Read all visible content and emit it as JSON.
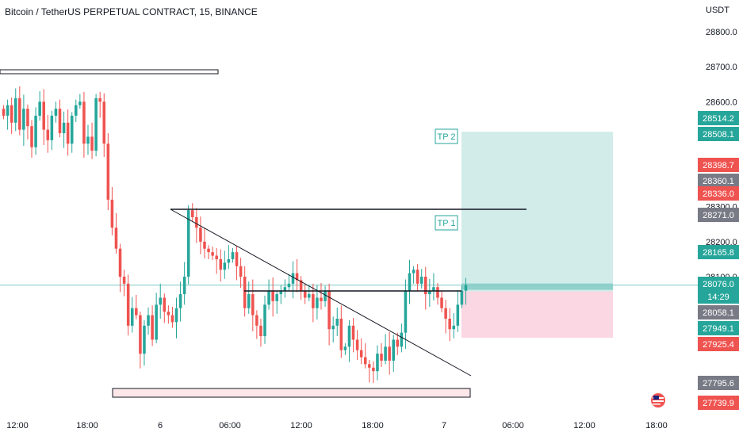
{
  "header": {
    "title": "Bitcoin / TetherUS PERPETUAL CONTRACT, 15, BINANCE",
    "currency": "USDT"
  },
  "colors": {
    "up": "#26a69a",
    "down": "#ef5350",
    "tp_zone": "#b2dfdb",
    "sl_zone": "#f8bbd0",
    "price_line": "#26a69a",
    "bg": "#ffffff"
  },
  "icons": [
    "flag-us-icon"
  ],
  "chart_data": {
    "type": "candlestick",
    "symbol": "BTCUSDT",
    "interval": "15",
    "exchange": "BINANCE",
    "y_axis": {
      "ticks": [
        28800.0,
        28700.0,
        28600.0,
        28300.0,
        28200.0,
        28100.0
      ],
      "tick_labels": [
        "28800.0",
        "28700.0",
        "28600.0",
        "28300.0",
        "28200.0",
        "28100.0"
      ]
    },
    "x_axis": {
      "tick_labels": [
        "12:00",
        "18:00",
        "6",
        "06:00",
        "12:00",
        "18:00",
        "7",
        "06:00",
        "12:00",
        "18:00"
      ]
    },
    "price_labels": [
      {
        "value": "28514.2",
        "kind": "up"
      },
      {
        "value": "28508.1",
        "kind": "up"
      },
      {
        "value": "28398.7",
        "kind": "down"
      },
      {
        "value": "28360.1",
        "kind": "neutral"
      },
      {
        "value": "28336.0",
        "kind": "down"
      },
      {
        "value": "28271.0",
        "kind": "neutral"
      },
      {
        "value": "28165.8",
        "kind": "up"
      },
      {
        "value": "28076.0",
        "kind": "up"
      },
      {
        "value": "14:29",
        "kind": "up"
      },
      {
        "value": "28058.1",
        "kind": "neutral"
      },
      {
        "value": "27949.1",
        "kind": "up"
      },
      {
        "value": "27925.4",
        "kind": "down"
      },
      {
        "value": "27795.6",
        "kind": "neutral"
      },
      {
        "value": "27739.9",
        "kind": "down"
      }
    ],
    "current_price": 28076.0,
    "countdown": "14:29",
    "annotations": [
      {
        "label": "TP 2",
        "price": 28514.2
      },
      {
        "label": "TP 1",
        "price": 28271.0
      }
    ],
    "position": {
      "entry": 28058.1,
      "target": 28514.2,
      "stop": 27925.4
    },
    "levels": {
      "resistance_high": 28700.0,
      "horizontal_resistance": 28300.0,
      "breakout_line": 28058.1,
      "support_zone": 27770.0
    },
    "candles_close_estimate": [
      28560,
      28590,
      28540,
      28610,
      28520,
      28580,
      28530,
      28470,
      28560,
      28600,
      28520,
      28490,
      28560,
      28580,
      28510,
      28540,
      28480,
      28560,
      28590,
      28600,
      28480,
      28500,
      28460,
      28610,
      28600,
      28480,
      28320,
      28240,
      28180,
      28100,
      28080,
      27960,
      28010,
      27990,
      27880,
      27960,
      27990,
      27920,
      28020,
      28040,
      28000,
      27990,
      27970,
      28010,
      28050,
      28100,
      28290,
      28270,
      28240,
      28200,
      28180,
      28170,
      28160,
      28150,
      28120,
      28140,
      28150,
      28170,
      28130,
      28100,
      28010,
      28050,
      27990,
      27960,
      27930,
      28020,
      28060,
      28030,
      28050,
      28060,
      28070,
      28080,
      28110,
      28090,
      28060,
      28040,
      28050,
      28010,
      28040,
      28030,
      28060,
      27950,
      27960,
      27980,
      27890,
      27900,
      27960,
      27920,
      27890,
      27870,
      27850,
      27840,
      27830,
      27880,
      27860,
      27900,
      27860,
      27920,
      27900,
      27940,
      28060,
      28110,
      28120,
      28080,
      28100,
      28050,
      28060,
      28070,
      28040,
      28010,
      27980,
      27950,
      27960,
      28020,
      28060,
      28076
    ]
  }
}
